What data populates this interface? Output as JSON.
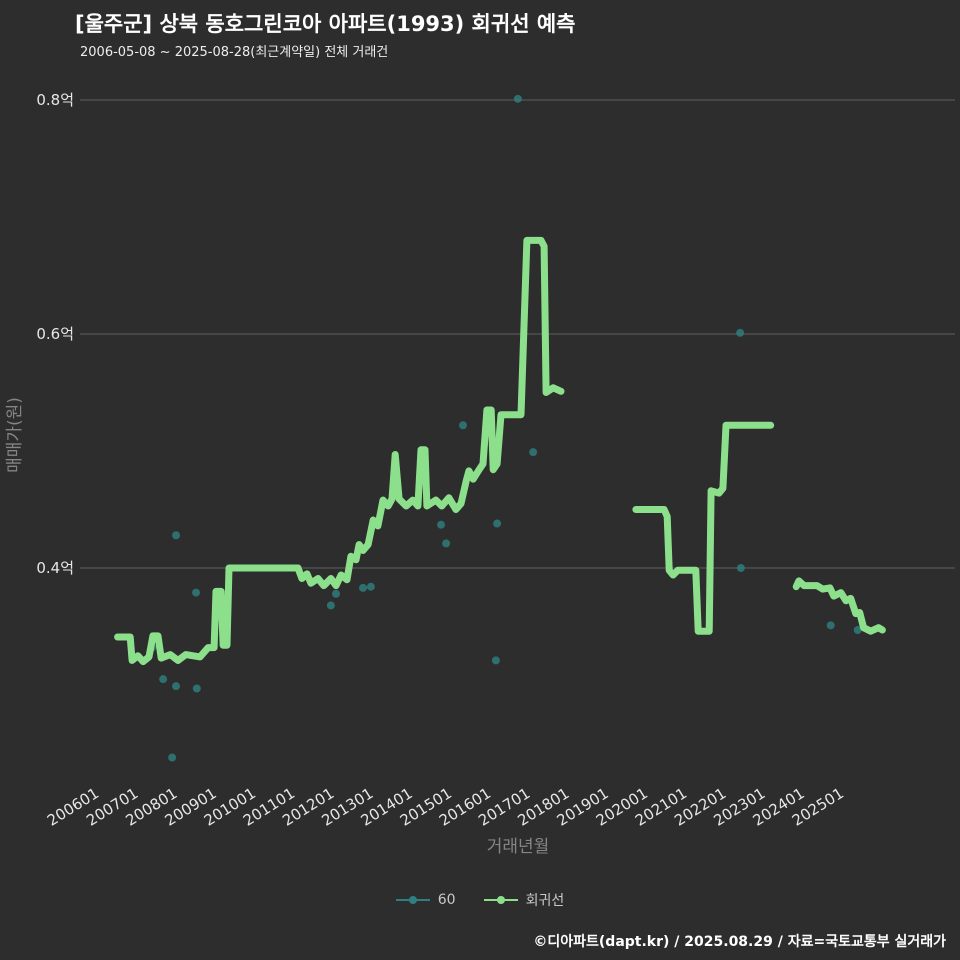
{
  "footer": "©디아파트(dapt.kr) / 2025.08.29 / 자료=국토교통부 실거래가",
  "colors": {
    "background": "#2d2d2d",
    "grid": "#606060",
    "tick_text": "#e6e6e6",
    "axis_title_text": "#858585",
    "scatter_series": "#2e8080",
    "regression_line": "#8ce08c",
    "title_text": "#ffffff",
    "legend_text": "#c9c9c9"
  },
  "chart_data": {
    "type": "line",
    "title": "[울주군] 상북 동호그린코아 아파트(1993) 회귀선 예측",
    "subtitle": "2006-05-08 ~ 2025-08-28(최근계약일) 전체 거래건",
    "xlabel": "거래년월",
    "ylabel": "매매가(원)",
    "ylim": [
      0.21,
      0.81
    ],
    "xlim": [
      2005.5,
      2027.8
    ],
    "grid": "horizontal-only",
    "legend_position": "bottom",
    "unit": "억",
    "yticks": [
      {
        "value": 0.8,
        "label": "0.8억"
      },
      {
        "value": 0.6,
        "label": "0.6억"
      },
      {
        "value": 0.4,
        "label": "0.4억"
      }
    ],
    "xticks": [
      {
        "value": 2006,
        "label": "200601"
      },
      {
        "value": 2007,
        "label": "200701"
      },
      {
        "value": 2008,
        "label": "200801"
      },
      {
        "value": 2009,
        "label": "200901"
      },
      {
        "value": 2010,
        "label": "201001"
      },
      {
        "value": 2011,
        "label": "201101"
      },
      {
        "value": 2012,
        "label": "201201"
      },
      {
        "value": 2013,
        "label": "201301"
      },
      {
        "value": 2014,
        "label": "201401"
      },
      {
        "value": 2015,
        "label": "201501"
      },
      {
        "value": 2016,
        "label": "201601"
      },
      {
        "value": 2017,
        "label": "201701"
      },
      {
        "value": 2018,
        "label": "201801"
      },
      {
        "value": 2019,
        "label": "201901"
      },
      {
        "value": 2020,
        "label": "202001"
      },
      {
        "value": 2021,
        "label": "202101"
      },
      {
        "value": 2022,
        "label": "202201"
      },
      {
        "value": 2023,
        "label": "202301"
      },
      {
        "value": 2024,
        "label": "202401"
      },
      {
        "value": 2025,
        "label": "202501"
      }
    ],
    "series": [
      {
        "name": "60",
        "type": "scatter",
        "color": "#2e8080",
        "points": [
          [
            2007.33,
            0.332
          ],
          [
            2007.61,
            0.305
          ],
          [
            2007.84,
            0.238
          ],
          [
            2007.94,
            0.299
          ],
          [
            2007.94,
            0.428
          ],
          [
            2008.45,
            0.379
          ],
          [
            2008.47,
            0.297
          ],
          [
            2011.89,
            0.368
          ],
          [
            2012.02,
            0.378
          ],
          [
            2012.71,
            0.383
          ],
          [
            2012.91,
            0.384
          ],
          [
            2014.7,
            0.437
          ],
          [
            2014.83,
            0.421
          ],
          [
            2015.26,
            0.522
          ],
          [
            2016.1,
            0.321
          ],
          [
            2016.13,
            0.438
          ],
          [
            2016.66,
            0.801
          ],
          [
            2017.05,
            0.499
          ],
          [
            2022.33,
            0.601
          ],
          [
            2022.35,
            0.4
          ],
          [
            2024.64,
            0.351
          ],
          [
            2025.33,
            0.347
          ]
        ]
      },
      {
        "name": "회귀선",
        "type": "line",
        "color": "#8ce08c",
        "segments": [
          [
            [
              2006.45,
              0.341
            ],
            [
              2006.77,
              0.341
            ],
            [
              2006.82,
              0.321
            ],
            [
              2006.97,
              0.325
            ],
            [
              2007.1,
              0.32
            ],
            [
              2007.25,
              0.324
            ],
            [
              2007.35,
              0.342
            ],
            [
              2007.48,
              0.342
            ],
            [
              2007.56,
              0.323
            ],
            [
              2007.79,
              0.326
            ],
            [
              2007.99,
              0.321
            ],
            [
              2008.19,
              0.326
            ],
            [
              2008.55,
              0.324
            ],
            [
              2008.76,
              0.332
            ],
            [
              2008.91,
              0.332
            ],
            [
              2008.96,
              0.38
            ],
            [
              2009.09,
              0.38
            ],
            [
              2009.14,
              0.334
            ],
            [
              2009.24,
              0.334
            ],
            [
              2009.29,
              0.4
            ],
            [
              2011.05,
              0.4
            ],
            [
              2011.15,
              0.391
            ],
            [
              2011.28,
              0.395
            ],
            [
              2011.38,
              0.387
            ],
            [
              2011.56,
              0.391
            ],
            [
              2011.71,
              0.385
            ],
            [
              2011.89,
              0.391
            ],
            [
              2012.02,
              0.385
            ],
            [
              2012.15,
              0.394
            ],
            [
              2012.3,
              0.39
            ],
            [
              2012.4,
              0.41
            ],
            [
              2012.53,
              0.407
            ],
            [
              2012.61,
              0.42
            ],
            [
              2012.71,
              0.415
            ],
            [
              2012.84,
              0.42
            ],
            [
              2012.97,
              0.441
            ],
            [
              2013.09,
              0.436
            ],
            [
              2013.22,
              0.458
            ],
            [
              2013.35,
              0.453
            ],
            [
              2013.45,
              0.459
            ],
            [
              2013.53,
              0.497
            ],
            [
              2013.63,
              0.459
            ],
            [
              2013.81,
              0.453
            ],
            [
              2013.98,
              0.458
            ],
            [
              2014.11,
              0.453
            ],
            [
              2014.19,
              0.501
            ],
            [
              2014.29,
              0.501
            ],
            [
              2014.34,
              0.453
            ],
            [
              2014.57,
              0.458
            ],
            [
              2014.72,
              0.453
            ],
            [
              2014.9,
              0.46
            ],
            [
              2015.08,
              0.45
            ],
            [
              2015.21,
              0.455
            ],
            [
              2015.34,
              0.474
            ],
            [
              2015.41,
              0.483
            ],
            [
              2015.52,
              0.476
            ],
            [
              2015.67,
              0.484
            ],
            [
              2015.77,
              0.489
            ],
            [
              2015.87,
              0.535
            ],
            [
              2015.98,
              0.535
            ],
            [
              2016.03,
              0.484
            ],
            [
              2016.13,
              0.489
            ],
            [
              2016.23,
              0.531
            ],
            [
              2016.74,
              0.531
            ],
            [
              2016.89,
              0.68
            ],
            [
              2017.25,
              0.68
            ],
            [
              2017.33,
              0.675
            ],
            [
              2017.38,
              0.55
            ],
            [
              2017.56,
              0.554
            ],
            [
              2017.76,
              0.551
            ]
          ],
          [
            [
              2019.67,
              0.45
            ],
            [
              2020.39,
              0.45
            ],
            [
              2020.47,
              0.444
            ],
            [
              2020.52,
              0.398
            ],
            [
              2020.62,
              0.394
            ],
            [
              2020.74,
              0.398
            ],
            [
              2021.2,
              0.398
            ],
            [
              2021.26,
              0.346
            ],
            [
              2021.54,
              0.346
            ],
            [
              2021.59,
              0.466
            ],
            [
              2021.79,
              0.464
            ],
            [
              2021.89,
              0.468
            ],
            [
              2021.97,
              0.522
            ],
            [
              2023.11,
              0.522
            ]
          ],
          [
            [
              2023.76,
              0.384
            ],
            [
              2023.83,
              0.389
            ],
            [
              2023.96,
              0.385
            ],
            [
              2024.29,
              0.385
            ],
            [
              2024.44,
              0.382
            ],
            [
              2024.62,
              0.383
            ],
            [
              2024.72,
              0.376
            ],
            [
              2024.9,
              0.379
            ],
            [
              2025.03,
              0.372
            ],
            [
              2025.15,
              0.374
            ],
            [
              2025.28,
              0.361
            ],
            [
              2025.38,
              0.362
            ],
            [
              2025.48,
              0.349
            ],
            [
              2025.66,
              0.346
            ],
            [
              2025.86,
              0.349
            ],
            [
              2025.96,
              0.347
            ]
          ]
        ]
      }
    ]
  }
}
